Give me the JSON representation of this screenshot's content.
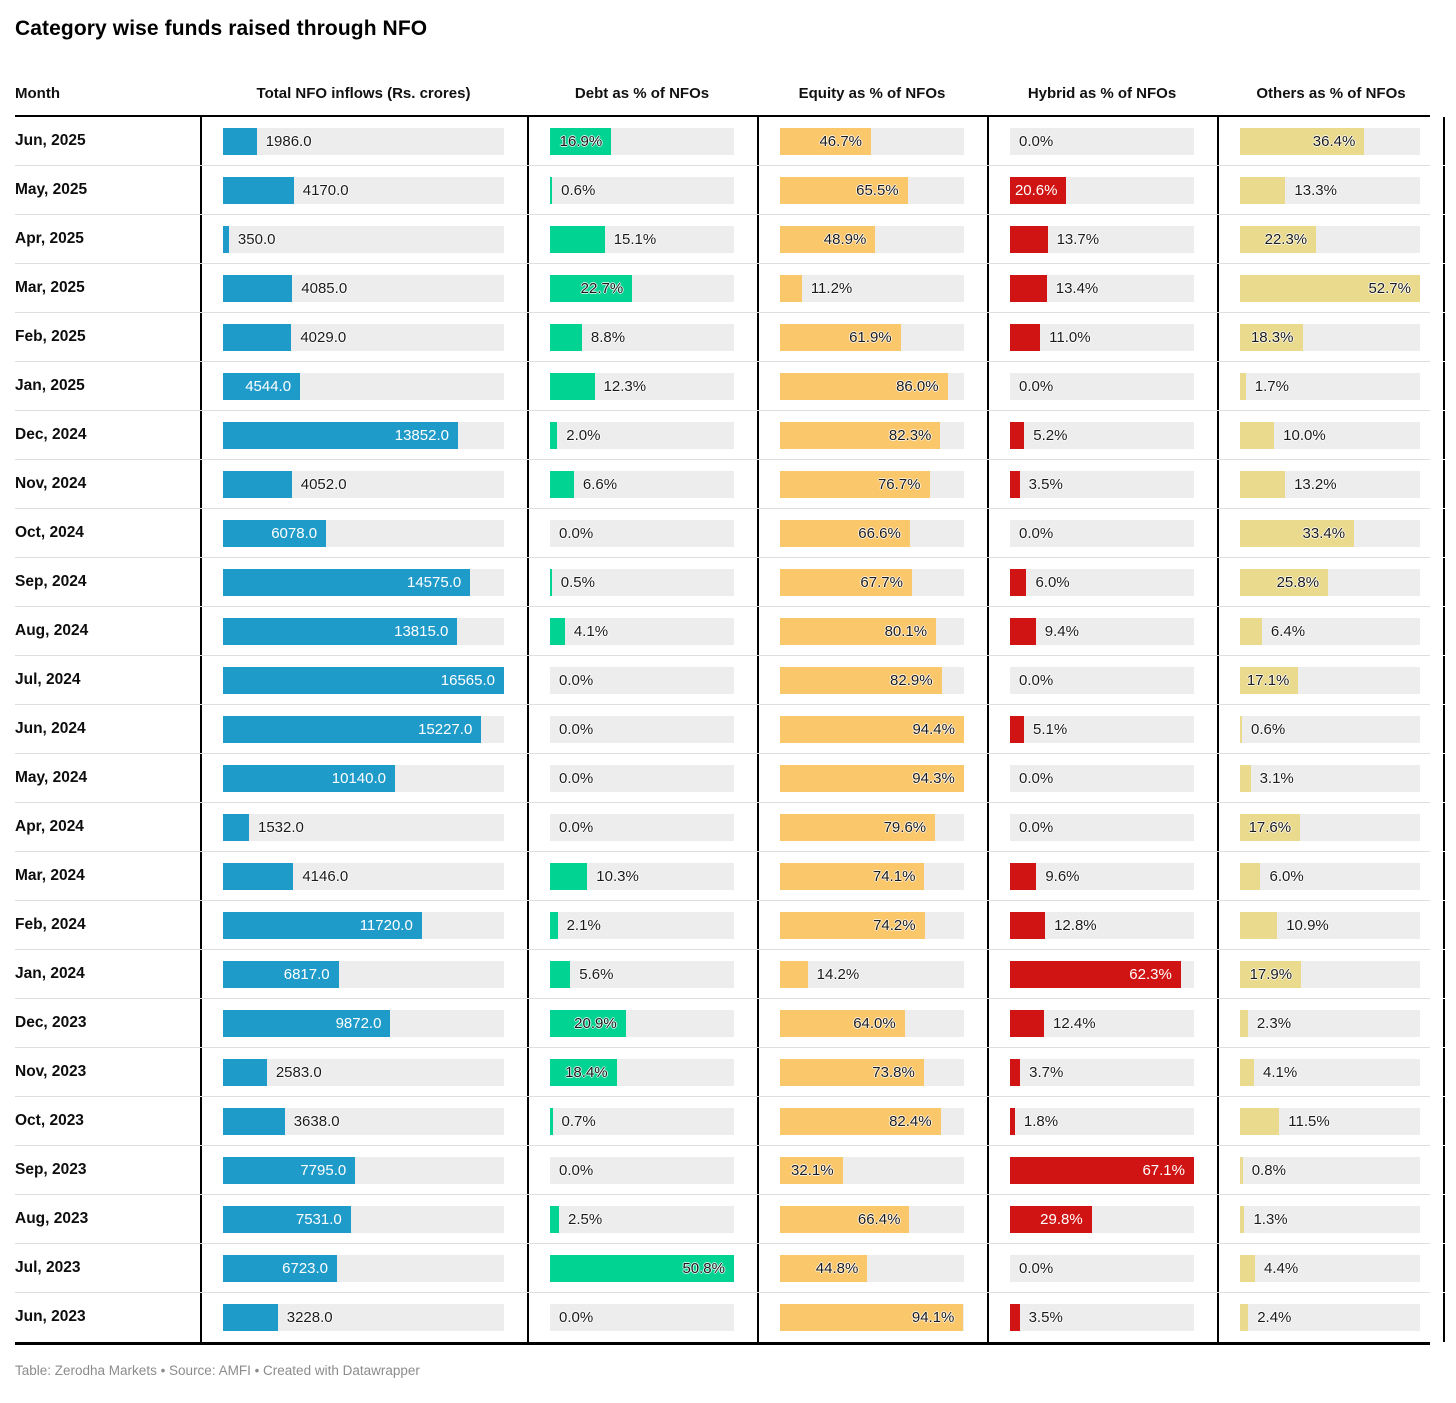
{
  "title": "Category wise funds raised through NFO",
  "footer": "Table: Zerodha Markets • Source: AMFI • Created with Datawrapper",
  "columns": [
    "Month",
    "Total NFO inflows (Rs. crores)",
    "Debt as % of NFOs",
    "Equity as % of NFOs",
    "Hybrid as % of NFOs",
    "Others as % of NFOs"
  ],
  "chart_data": {
    "type": "table",
    "title": "Category wise funds raised through NFO",
    "columns": [
      "Month",
      "Total NFO inflows (Rs. crores)",
      "Debt as % of NFOs",
      "Equity as % of NFOs",
      "Hybrid as % of NFOs",
      "Others as % of NFOs"
    ],
    "rows": [
      {
        "month": "Jun, 2025",
        "total": 1986.0,
        "debt": 16.9,
        "equity": 46.7,
        "hybrid": 0.0,
        "others": 36.4
      },
      {
        "month": "May, 2025",
        "total": 4170.0,
        "debt": 0.6,
        "equity": 65.5,
        "hybrid": 20.6,
        "others": 13.3
      },
      {
        "month": "Apr, 2025",
        "total": 350.0,
        "debt": 15.1,
        "equity": 48.9,
        "hybrid": 13.7,
        "others": 22.3
      },
      {
        "month": "Mar, 2025",
        "total": 4085.0,
        "debt": 22.7,
        "equity": 11.2,
        "hybrid": 13.4,
        "others": 52.7
      },
      {
        "month": "Feb, 2025",
        "total": 4029.0,
        "debt": 8.8,
        "equity": 61.9,
        "hybrid": 11.0,
        "others": 18.3
      },
      {
        "month": "Jan, 2025",
        "total": 4544.0,
        "debt": 12.3,
        "equity": 86.0,
        "hybrid": 0.0,
        "others": 1.7
      },
      {
        "month": "Dec, 2024",
        "total": 13852.0,
        "debt": 2.0,
        "equity": 82.3,
        "hybrid": 5.2,
        "others": 10.0
      },
      {
        "month": "Nov, 2024",
        "total": 4052.0,
        "debt": 6.6,
        "equity": 76.7,
        "hybrid": 3.5,
        "others": 13.2
      },
      {
        "month": "Oct, 2024",
        "total": 6078.0,
        "debt": 0.0,
        "equity": 66.6,
        "hybrid": 0.0,
        "others": 33.4
      },
      {
        "month": "Sep, 2024",
        "total": 14575.0,
        "debt": 0.5,
        "equity": 67.7,
        "hybrid": 6.0,
        "others": 25.8
      },
      {
        "month": "Aug, 2024",
        "total": 13815.0,
        "debt": 4.1,
        "equity": 80.1,
        "hybrid": 9.4,
        "others": 6.4
      },
      {
        "month": "Jul, 2024",
        "total": 16565.0,
        "debt": 0.0,
        "equity": 82.9,
        "hybrid": 0.0,
        "others": 17.1
      },
      {
        "month": "Jun, 2024",
        "total": 15227.0,
        "debt": 0.0,
        "equity": 94.4,
        "hybrid": 5.1,
        "others": 0.6
      },
      {
        "month": "May, 2024",
        "total": 10140.0,
        "debt": 0.0,
        "equity": 94.3,
        "hybrid": 0.0,
        "others": 3.1
      },
      {
        "month": "Apr, 2024",
        "total": 1532.0,
        "debt": 0.0,
        "equity": 79.6,
        "hybrid": 0.0,
        "others": 17.6
      },
      {
        "month": "Mar, 2024",
        "total": 4146.0,
        "debt": 10.3,
        "equity": 74.1,
        "hybrid": 9.6,
        "others": 6.0
      },
      {
        "month": "Feb, 2024",
        "total": 11720.0,
        "debt": 2.1,
        "equity": 74.2,
        "hybrid": 12.8,
        "others": 10.9
      },
      {
        "month": "Jan, 2024",
        "total": 6817.0,
        "debt": 5.6,
        "equity": 14.2,
        "hybrid": 62.3,
        "others": 17.9
      },
      {
        "month": "Dec, 2023",
        "total": 9872.0,
        "debt": 20.9,
        "equity": 64.0,
        "hybrid": 12.4,
        "others": 2.3
      },
      {
        "month": "Nov, 2023",
        "total": 2583.0,
        "debt": 18.4,
        "equity": 73.8,
        "hybrid": 3.7,
        "others": 4.1
      },
      {
        "month": "Oct, 2023",
        "total": 3638.0,
        "debt": 0.7,
        "equity": 82.4,
        "hybrid": 1.8,
        "others": 11.5
      },
      {
        "month": "Sep, 2023",
        "total": 7795.0,
        "debt": 0.0,
        "equity": 32.1,
        "hybrid": 67.1,
        "others": 0.8
      },
      {
        "month": "Aug, 2023",
        "total": 7531.0,
        "debt": 2.5,
        "equity": 66.4,
        "hybrid": 29.8,
        "others": 1.3
      },
      {
        "month": "Jul, 2023",
        "total": 6723.0,
        "debt": 50.8,
        "equity": 44.8,
        "hybrid": 0.0,
        "others": 4.4
      },
      {
        "month": "Jun, 2023",
        "total": 3228.0,
        "debt": 0.0,
        "equity": 94.1,
        "hybrid": 3.5,
        "others": 2.4
      }
    ],
    "axis_max": {
      "total": 16565,
      "debt": 50.8,
      "equity": 94.4,
      "hybrid": 67.1,
      "others": 52.7
    },
    "colors": {
      "total": "#1f9bca",
      "debt": "#00d392",
      "equity": "#fbc76b",
      "hybrid": "#cf1413",
      "others": "#e9da8d",
      "track": "#ededed"
    },
    "value_suffix": {
      "total": "",
      "debt": "%",
      "equity": "%",
      "hybrid": "%",
      "others": "%"
    }
  }
}
